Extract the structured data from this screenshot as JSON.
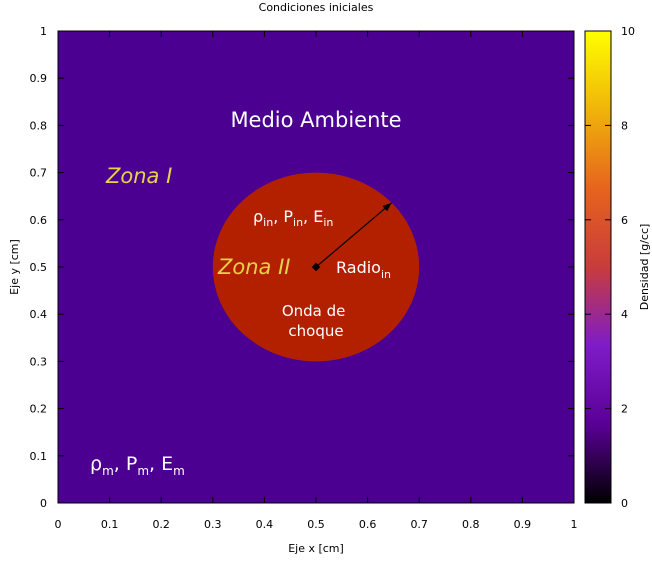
{
  "chart_data": {
    "type": "heatmap",
    "title": "Condiciones iniciales",
    "xlabel": "Eje x [cm]",
    "ylabel": "Eje y [cm]",
    "xlim": [
      0,
      1
    ],
    "ylim": [
      0,
      1
    ],
    "x_ticks": [
      "0",
      "0.1",
      "0.2",
      "0.3",
      "0.4",
      "0.5",
      "0.6",
      "0.7",
      "0.8",
      "0.9",
      "1"
    ],
    "y_ticks": [
      "0",
      "0.1",
      "0.2",
      "0.3",
      "0.4",
      "0.5",
      "0.6",
      "0.7",
      "0.8",
      "0.9",
      "1"
    ],
    "colorbar": {
      "label": "Densidad [g/cc]",
      "range": [
        0,
        10
      ],
      "ticks": [
        "0",
        "2",
        "4",
        "6",
        "8",
        "10"
      ],
      "colors": [
        "#000000",
        "#5a0096",
        "#7e1cc8",
        "#c83c3c",
        "#e6641e",
        "#f0b40a",
        "#ffff00"
      ]
    },
    "regions": [
      {
        "name": "ambient",
        "density": 1.0,
        "color": "#4b0091"
      },
      {
        "name": "circle",
        "center": [
          0.5,
          0.5
        ],
        "radius": 0.2,
        "density": 5.0,
        "color": "#b22000"
      }
    ],
    "annotations": {
      "medio": "Medio Ambiente",
      "zona1": "Zona I",
      "zona2": "Zona II",
      "inner_params": {
        "rho": "ρ",
        "P": "P",
        "E": "E",
        "sub": "in",
        "sep": ", "
      },
      "ambient_params": {
        "rho": "ρ",
        "P": "P",
        "E": "E",
        "sub": "m",
        "sep": ", "
      },
      "radio": {
        "text": "Radio",
        "sub": "in"
      },
      "onda": [
        "Onda de",
        "choque"
      ]
    }
  }
}
